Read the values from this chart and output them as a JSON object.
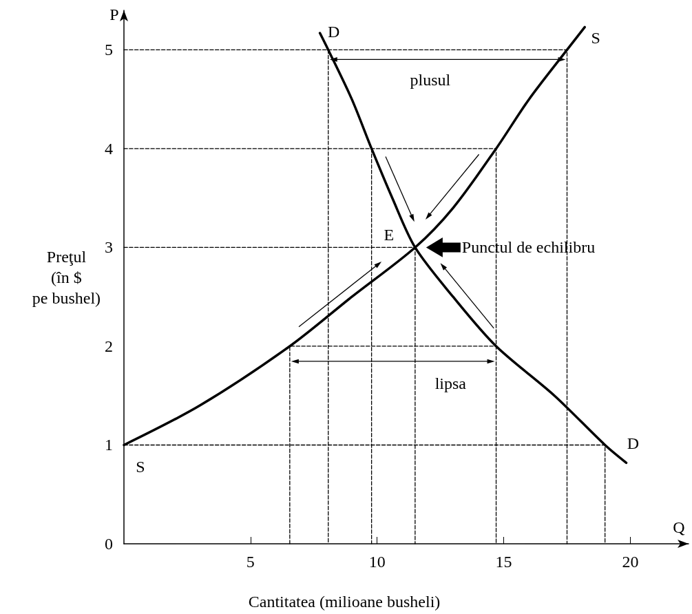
{
  "chart_data": {
    "type": "line",
    "xlabel": "Cantitatea (milioane busheli)",
    "ylabel": "Preţul\n(în $\npe bushel)",
    "xlim": [
      0,
      22.3
    ],
    "ylim": [
      0,
      5.4
    ],
    "xticks": [
      5,
      10,
      15,
      20
    ],
    "yticks": [
      0,
      1,
      2,
      3,
      4,
      5
    ],
    "grid": false,
    "marker": "none",
    "series": [
      {
        "color": "#000000",
        "line_style": "solid",
        "x": [
          0,
          3,
          6.55,
          9,
          11.5,
          13,
          14.7,
          16,
          17.5,
          18.2
        ],
        "values": [
          1,
          1.4,
          2,
          2.5,
          3,
          3.4,
          4,
          4.5,
          5,
          5.23
        ]
      },
      {
        "color": "#000000",
        "line_style": "solid",
        "x": [
          7.74,
          8.07,
          9,
          9.78,
          10.6,
          11.5,
          13,
          14.7,
          17,
          19,
          19.84
        ],
        "values": [
          5.17,
          5,
          4.5,
          4,
          3.5,
          3,
          2.5,
          2,
          1.5,
          1,
          0.82
        ]
      },
      {
        "color": "#000000",
        "line_style": "dashed",
        "x": [
          0,
          17.5,
          17.5
        ],
        "values": [
          5,
          5,
          0
        ]
      },
      {
        "color": "#000000",
        "line_style": "dashed",
        "x": [
          8.07,
          8.07
        ],
        "values": [
          5,
          0
        ]
      },
      {
        "color": "#000000",
        "line_style": "dashed",
        "x": [
          0,
          14.7,
          14.7
        ],
        "values": [
          4,
          4,
          0
        ]
      },
      {
        "color": "#000000",
        "line_style": "dashed",
        "x": [
          9.78,
          9.78
        ],
        "values": [
          4,
          0
        ]
      },
      {
        "color": "#000000",
        "line_style": "dashed",
        "x": [
          0,
          11.5,
          11.5
        ],
        "values": [
          3,
          3,
          0
        ]
      },
      {
        "color": "#000000",
        "line_style": "dashed",
        "x": [
          6.55,
          6.55,
          14.7
        ],
        "values": [
          0,
          2,
          2
        ]
      },
      {
        "color": "#000000",
        "line_style": "dashed",
        "x": [
          0,
          19,
          19
        ],
        "values": [
          1,
          1,
          0
        ]
      }
    ],
    "annotations": [
      {
        "text": "plusul",
        "x": 12.1,
        "y": 5
      },
      {
        "text": "lipsa",
        "x": 12.9,
        "y": 2
      },
      {
        "text": "Punctul de echilibru",
        "x": 11.5,
        "y": 3
      },
      {
        "text": "E",
        "x": 11.5,
        "y": 3
      },
      {
        "text": "D",
        "x": 7.74,
        "y": 5.17
      },
      {
        "text": "S",
        "x": 18.2,
        "y": 5.23
      },
      {
        "text": "D",
        "x": 19.84,
        "y": 0.82
      },
      {
        "text": "S",
        "x": 0,
        "y": 1
      },
      "P",
      "Q"
    ]
  }
}
